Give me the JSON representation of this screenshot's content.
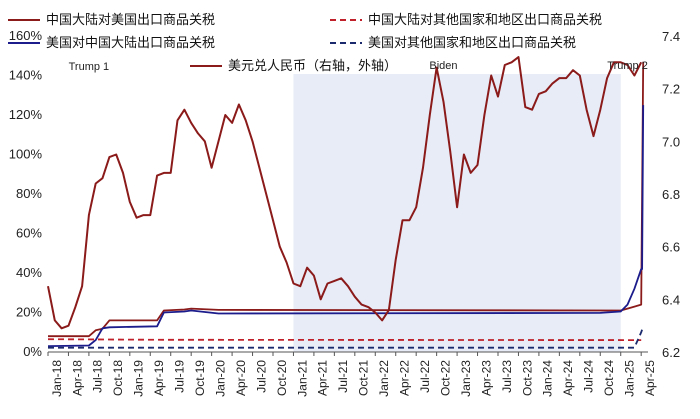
{
  "chart_data": {
    "type": "line",
    "x_start": "2018-01",
    "x_end": "2025-05",
    "x_ticks": [
      "Jan-18",
      "Apr-18",
      "Jul-18",
      "Oct-18",
      "Jan-19",
      "Apr-19",
      "Jul-19",
      "Oct-19",
      "Jan-20",
      "Apr-20",
      "Jul-20",
      "Oct-20",
      "Jan-21",
      "Apr-21",
      "Jul-21",
      "Oct-21",
      "Jan-22",
      "Apr-22",
      "Jul-22",
      "Oct-22",
      "Jan-23",
      "Apr-23",
      "Jul-23",
      "Oct-23",
      "Jan-24",
      "Apr-24",
      "Jul-24",
      "Oct-24",
      "Jan-25",
      "Apr-25"
    ],
    "y_left": {
      "min": 0,
      "max": 160,
      "ticks": [
        0,
        20,
        40,
        60,
        80,
        100,
        120,
        140,
        160
      ],
      "tick_labels": [
        "0%",
        "20%",
        "40%",
        "60%",
        "80%",
        "100%",
        "120%",
        "140%",
        "160%"
      ]
    },
    "y_right": {
      "min": 6.2,
      "max": 7.4,
      "ticks": [
        6.2,
        6.4,
        6.6,
        6.8,
        7.0,
        7.2,
        7.4
      ],
      "tick_labels": [
        "6.2",
        "6.4",
        "6.6",
        "6.8",
        "7.0",
        "7.2",
        "7.4"
      ]
    },
    "shaded_period": {
      "start": "2021-01",
      "end": "2025-01",
      "color": "#e7ecf6"
    },
    "annotations": [
      {
        "text": "Trump 1",
        "date": "2018-07"
      },
      {
        "text": "Biden",
        "date": "2022-11"
      },
      {
        "text": "Trump 2",
        "date": "2025-02"
      }
    ],
    "series": [
      {
        "name": "中国大陆对美国出口商品关税",
        "axis": "left",
        "style": "solid",
        "color": "#8b1a1a",
        "points": [
          [
            "2018-01",
            8
          ],
          [
            "2018-07",
            8
          ],
          [
            "2018-08",
            11
          ],
          [
            "2018-09",
            11.8
          ],
          [
            "2018-10",
            16
          ],
          [
            "2019-05",
            16
          ],
          [
            "2019-06",
            21
          ],
          [
            "2019-09",
            21.5
          ],
          [
            "2019-10",
            22
          ],
          [
            "2020-02",
            21.3
          ],
          [
            "2025-01",
            21
          ],
          [
            "2025-02",
            22
          ],
          [
            "2025-03",
            23
          ],
          [
            "2025-04",
            24
          ],
          [
            "2025-04-10",
            147
          ]
        ]
      },
      {
        "name": "美国对中国大陆出口商品关税",
        "axis": "left",
        "style": "solid",
        "color": "#1c1c8c",
        "points": [
          [
            "2018-01",
            3
          ],
          [
            "2018-07",
            3.3
          ],
          [
            "2018-08",
            6
          ],
          [
            "2018-09",
            12
          ],
          [
            "2018-10",
            12.5
          ],
          [
            "2019-05",
            13
          ],
          [
            "2019-06",
            20
          ],
          [
            "2019-09",
            20.5
          ],
          [
            "2019-10",
            21
          ],
          [
            "2020-02",
            19.5
          ],
          [
            "2024-10",
            19.8
          ],
          [
            "2025-01",
            20.5
          ],
          [
            "2025-02",
            24
          ],
          [
            "2025-03",
            32
          ],
          [
            "2025-04",
            42
          ],
          [
            "2025-04-05",
            42
          ],
          [
            "2025-04-10",
            125
          ]
        ]
      },
      {
        "name": "中国大陆对其他国家和地区出口商品关税",
        "axis": "left",
        "style": "dashed",
        "color": "#c0202a",
        "points": [
          [
            "2018-01",
            6.5
          ],
          [
            "2019-06",
            6.2
          ],
          [
            "2025-04",
            6.0
          ]
        ]
      },
      {
        "name": "美国对其他国家和地区出口商品关税",
        "axis": "left",
        "style": "dashed",
        "color": "#1a2a6c",
        "points": [
          [
            "2018-01",
            2.2
          ],
          [
            "2025-03",
            2.2
          ],
          [
            "2025-04",
            10
          ],
          [
            "2025-04-10",
            13
          ]
        ]
      },
      {
        "name": "美元兑人民币（右轴，外轴）",
        "axis": "right",
        "style": "solid",
        "color": "#8b1a1a",
        "points": [
          [
            "2018-01",
            6.45
          ],
          [
            "2018-02",
            6.32
          ],
          [
            "2018-03",
            6.29
          ],
          [
            "2018-04",
            6.3
          ],
          [
            "2018-05",
            6.37
          ],
          [
            "2018-06",
            6.45
          ],
          [
            "2018-07",
            6.72
          ],
          [
            "2018-08",
            6.84
          ],
          [
            "2018-09",
            6.86
          ],
          [
            "2018-10",
            6.94
          ],
          [
            "2018-11",
            6.95
          ],
          [
            "2018-12",
            6.88
          ],
          [
            "2019-01",
            6.77
          ],
          [
            "2019-02",
            6.71
          ],
          [
            "2019-03",
            6.72
          ],
          [
            "2019-04",
            6.72
          ],
          [
            "2019-05",
            6.87
          ],
          [
            "2019-06",
            6.88
          ],
          [
            "2019-07",
            6.88
          ],
          [
            "2019-08",
            7.08
          ],
          [
            "2019-09",
            7.12
          ],
          [
            "2019-10",
            7.07
          ],
          [
            "2019-11",
            7.03
          ],
          [
            "2019-12",
            7.0
          ],
          [
            "2020-01",
            6.9
          ],
          [
            "2020-02",
            7.0
          ],
          [
            "2020-03",
            7.1
          ],
          [
            "2020-04",
            7.07
          ],
          [
            "2020-05",
            7.14
          ],
          [
            "2020-06",
            7.08
          ],
          [
            "2020-07",
            7.0
          ],
          [
            "2020-08",
            6.9
          ],
          [
            "2020-09",
            6.8
          ],
          [
            "2020-10",
            6.7
          ],
          [
            "2020-11",
            6.6
          ],
          [
            "2020-12",
            6.54
          ],
          [
            "2021-01",
            6.46
          ],
          [
            "2021-02",
            6.45
          ],
          [
            "2021-03",
            6.52
          ],
          [
            "2021-04",
            6.49
          ],
          [
            "2021-05",
            6.4
          ],
          [
            "2021-06",
            6.46
          ],
          [
            "2021-07",
            6.47
          ],
          [
            "2021-08",
            6.48
          ],
          [
            "2021-09",
            6.45
          ],
          [
            "2021-10",
            6.41
          ],
          [
            "2021-11",
            6.38
          ],
          [
            "2021-12",
            6.37
          ],
          [
            "2022-01",
            6.35
          ],
          [
            "2022-02",
            6.32
          ],
          [
            "2022-03",
            6.36
          ],
          [
            "2022-04",
            6.55
          ],
          [
            "2022-05",
            6.7
          ],
          [
            "2022-06",
            6.7
          ],
          [
            "2022-07",
            6.75
          ],
          [
            "2022-08",
            6.9
          ],
          [
            "2022-09",
            7.1
          ],
          [
            "2022-10",
            7.28
          ],
          [
            "2022-11",
            7.15
          ],
          [
            "2022-12",
            6.96
          ],
          [
            "2023-01",
            6.75
          ],
          [
            "2023-02",
            6.95
          ],
          [
            "2023-03",
            6.88
          ],
          [
            "2023-04",
            6.91
          ],
          [
            "2023-05",
            7.1
          ],
          [
            "2023-06",
            7.25
          ],
          [
            "2023-07",
            7.17
          ],
          [
            "2023-08",
            7.29
          ],
          [
            "2023-09",
            7.3
          ],
          [
            "2023-10",
            7.32
          ],
          [
            "2023-11",
            7.13
          ],
          [
            "2023-12",
            7.12
          ],
          [
            "2024-01",
            7.18
          ],
          [
            "2024-02",
            7.19
          ],
          [
            "2024-03",
            7.22
          ],
          [
            "2024-04",
            7.24
          ],
          [
            "2024-05",
            7.24
          ],
          [
            "2024-06",
            7.27
          ],
          [
            "2024-07",
            7.25
          ],
          [
            "2024-08",
            7.12
          ],
          [
            "2024-09",
            7.02
          ],
          [
            "2024-10",
            7.12
          ],
          [
            "2024-11",
            7.24
          ],
          [
            "2024-12",
            7.3
          ],
          [
            "2025-01",
            7.3
          ],
          [
            "2025-02",
            7.29
          ],
          [
            "2025-03",
            7.25
          ],
          [
            "2025-04",
            7.3
          ]
        ]
      }
    ]
  }
}
